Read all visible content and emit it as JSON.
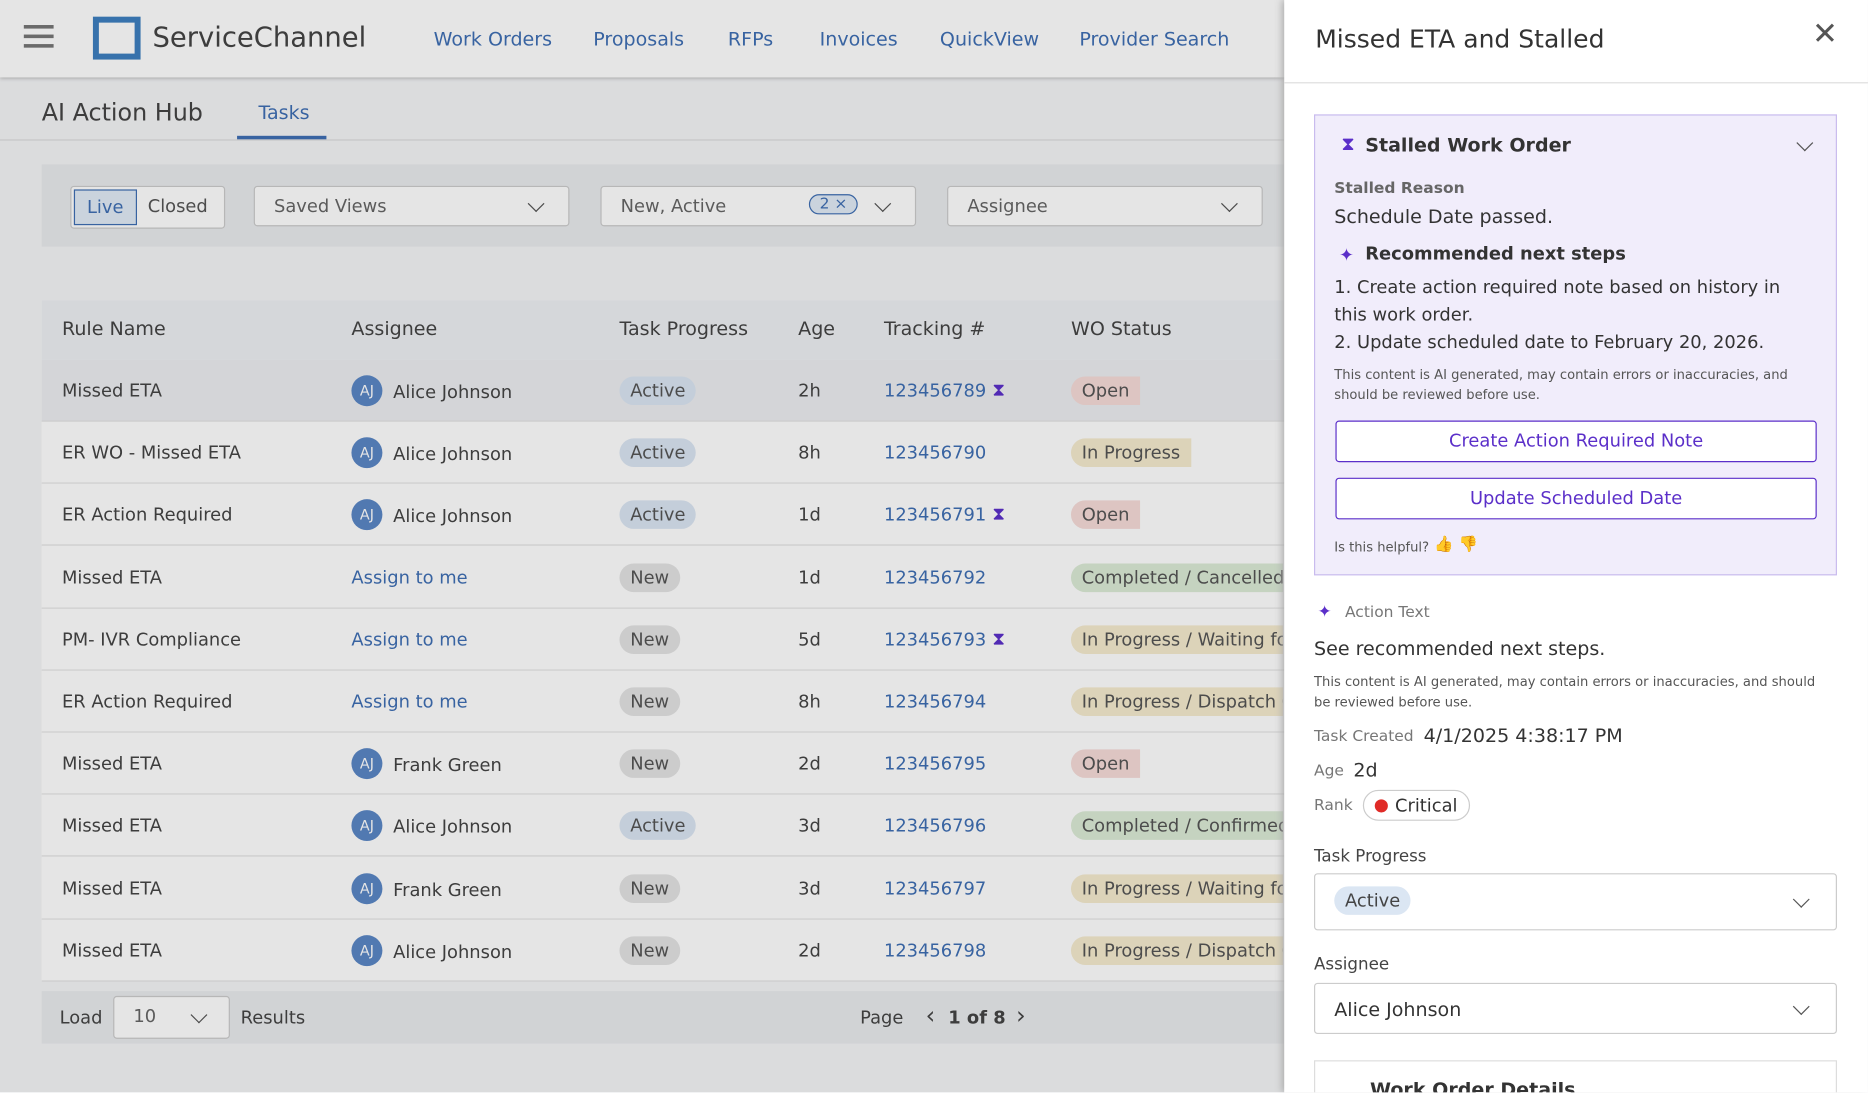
{
  "header": {
    "logo": "ServiceChannel",
    "nav": [
      "Work Orders",
      "Proposals",
      "RFPs",
      "Invoices",
      "QuickView",
      "Provider Search"
    ]
  },
  "page": {
    "title": "AI Action Hub",
    "tab": "Tasks"
  },
  "filters": {
    "toggle": [
      "Live",
      "Closed"
    ],
    "saved_views": "Saved Views",
    "status": "New, Active",
    "status_count": "2",
    "assignee": "Assignee"
  },
  "table": {
    "columns": [
      "Rule Name",
      "Assignee",
      "Task Progress",
      "Age",
      "Tracking #",
      "WO Status"
    ],
    "rows": [
      {
        "rule": "Missed ETA",
        "initials": "AJ",
        "assignee": "Alice Johnson",
        "progress": "Active",
        "age": "2h",
        "tracking": "123456789",
        "stalled": true,
        "status": "Open",
        "status_color": "#f6dcd9"
      },
      {
        "rule": "ER WO - Missed ETA",
        "initials": "AJ",
        "assignee": "Alice Johnson",
        "progress": "Active",
        "age": "8h",
        "tracking": "123456790",
        "stalled": false,
        "status": "In Progress",
        "status_color": "#f5ebcf"
      },
      {
        "rule": "ER Action Required",
        "initials": "AJ",
        "assignee": "Alice Johnson",
        "progress": "Active",
        "age": "1d",
        "tracking": "123456791",
        "stalled": true,
        "status": "Open",
        "status_color": "#f6dcd9"
      },
      {
        "rule": "Missed ETA",
        "assignee": "Assign to me",
        "progress": "New",
        "age": "1d",
        "tracking": "123456792",
        "stalled": false,
        "status": "Completed / Cancelled",
        "status_color": "#dcebd6"
      },
      {
        "rule": "PM- IVR Compliance",
        "assignee": "Assign to me",
        "progress": "New",
        "age": "5d",
        "tracking": "123456793",
        "stalled": true,
        "status": "In Progress / Waiting for",
        "status_color": "#f5ebcf"
      },
      {
        "rule": "ER Action Required",
        "assignee": "Assign to me",
        "progress": "New",
        "age": "8h",
        "tracking": "123456794",
        "stalled": false,
        "status": "In Progress / Dispatch C",
        "status_color": "#f5ebcf"
      },
      {
        "rule": "Missed ETA",
        "initials": "AJ",
        "assignee": "Frank Green",
        "progress": "New",
        "age": "2d",
        "tracking": "123456795",
        "stalled": false,
        "status": "Open",
        "status_color": "#f6dcd9"
      },
      {
        "rule": "Missed ETA",
        "initials": "AJ",
        "assignee": "Alice Johnson",
        "progress": "Active",
        "age": "3d",
        "tracking": "123456796",
        "stalled": false,
        "status": "Completed / Confirmed",
        "status_color": "#dcebd6"
      },
      {
        "rule": "Missed ETA",
        "initials": "AJ",
        "assignee": "Frank Green",
        "progress": "New",
        "age": "3d",
        "tracking": "123456797",
        "stalled": false,
        "status": "In Progress / Waiting for",
        "status_color": "#f5ebcf"
      },
      {
        "rule": "Missed ETA",
        "initials": "AJ",
        "assignee": "Alice Johnson",
        "progress": "New",
        "age": "2d",
        "tracking": "123456798",
        "stalled": false,
        "status": "In Progress / Dispatch C",
        "status_color": "#f5ebcf"
      }
    ]
  },
  "footer": {
    "load": "Load",
    "load_value": "10",
    "results": "Results",
    "page": "Page",
    "page_value": "1 of 8"
  },
  "panel": {
    "title": "Missed ETA and Stalled",
    "card": {
      "title": "Stalled Work Order",
      "reason_label": "Stalled Reason",
      "reason": "Schedule Date passed.",
      "steps_title": "Recommended next steps",
      "steps": [
        "1. Create action required note based on history in this work order.",
        "2. Update scheduled date to February 20, 2026."
      ],
      "disclaimer": "This content is AI generated, may contain errors or inaccuracies, and should be reviewed before use.",
      "buttons": [
        "Create Action Required Note",
        "Update Scheduled Date"
      ],
      "helpful": "Is this helpful?"
    },
    "action_text_label": "Action Text",
    "action_text": "See recommended next steps.",
    "disclaimer": "This content is AI generated, may contain errors or inaccuracies, and should be reviewed before use.",
    "details": [
      {
        "label": "Task Created",
        "value": "4/1/2025 4:38:17 PM"
      },
      {
        "label": "Age",
        "value": "2d"
      }
    ],
    "rank_label": "Rank",
    "rank": "Critical",
    "task_progress_label": "Task Progress",
    "task_progress": "Active",
    "assignee_label": "Assignee",
    "assignee": "Alice Johnson",
    "section": "Work Order Details"
  }
}
